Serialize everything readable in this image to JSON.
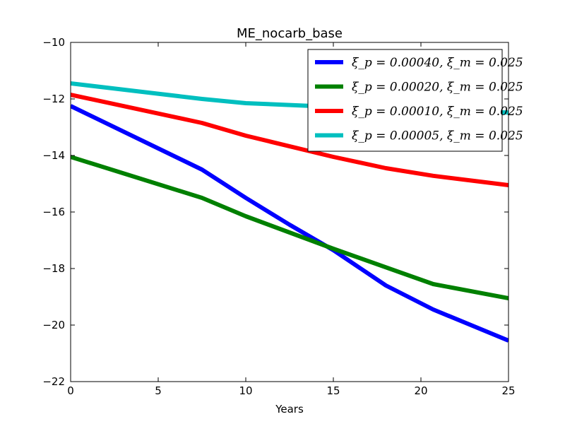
{
  "chart_data": {
    "type": "line",
    "title": "ME_nocarb_base",
    "xlabel": "Years",
    "ylabel": "",
    "xlim": [
      0,
      25
    ],
    "ylim": [
      -22,
      -10
    ],
    "xticks": [
      0,
      5,
      10,
      15,
      20,
      25
    ],
    "yticks": [
      -22,
      -20,
      -18,
      -16,
      -14,
      -12,
      -10
    ],
    "xtick_labels": [
      "0",
      "5",
      "10",
      "15",
      "20",
      "25"
    ],
    "ytick_labels": [
      "−22",
      "−20",
      "−18",
      "−16",
      "−14",
      "−12",
      "−10"
    ],
    "grid": false,
    "legend_position": "top-right",
    "series": [
      {
        "name": "ξ_p = 0.00040, ξ_m = 0.025",
        "color": "#0000ff",
        "x": [
          0,
          7.5,
          10,
          12.5,
          15,
          18,
          20.7,
          25
        ],
        "y": [
          -12.25,
          -14.5,
          -15.5,
          -16.45,
          -17.35,
          -18.6,
          -19.45,
          -20.55
        ]
      },
      {
        "name": "ξ_p = 0.00020, ξ_m = 0.025",
        "color": "#008000",
        "x": [
          0,
          7.5,
          10,
          15,
          20.7,
          25
        ],
        "y": [
          -14.05,
          -15.5,
          -16.15,
          -17.3,
          -18.55,
          -19.05
        ]
      },
      {
        "name": "ξ_p = 0.00010, ξ_m = 0.025",
        "color": "#ff0000",
        "x": [
          0,
          7.5,
          10,
          15,
          18,
          20.7,
          25
        ],
        "y": [
          -11.85,
          -12.85,
          -13.3,
          -14.05,
          -14.45,
          -14.72,
          -15.05
        ]
      },
      {
        "name": "ξ_p = 0.00005, ξ_m = 0.025",
        "color": "#00bfbf",
        "x": [
          0,
          7.5,
          10,
          15,
          20.7,
          25
        ],
        "y": [
          -11.45,
          -12.0,
          -12.15,
          -12.28,
          -12.4,
          -12.48
        ]
      }
    ]
  }
}
